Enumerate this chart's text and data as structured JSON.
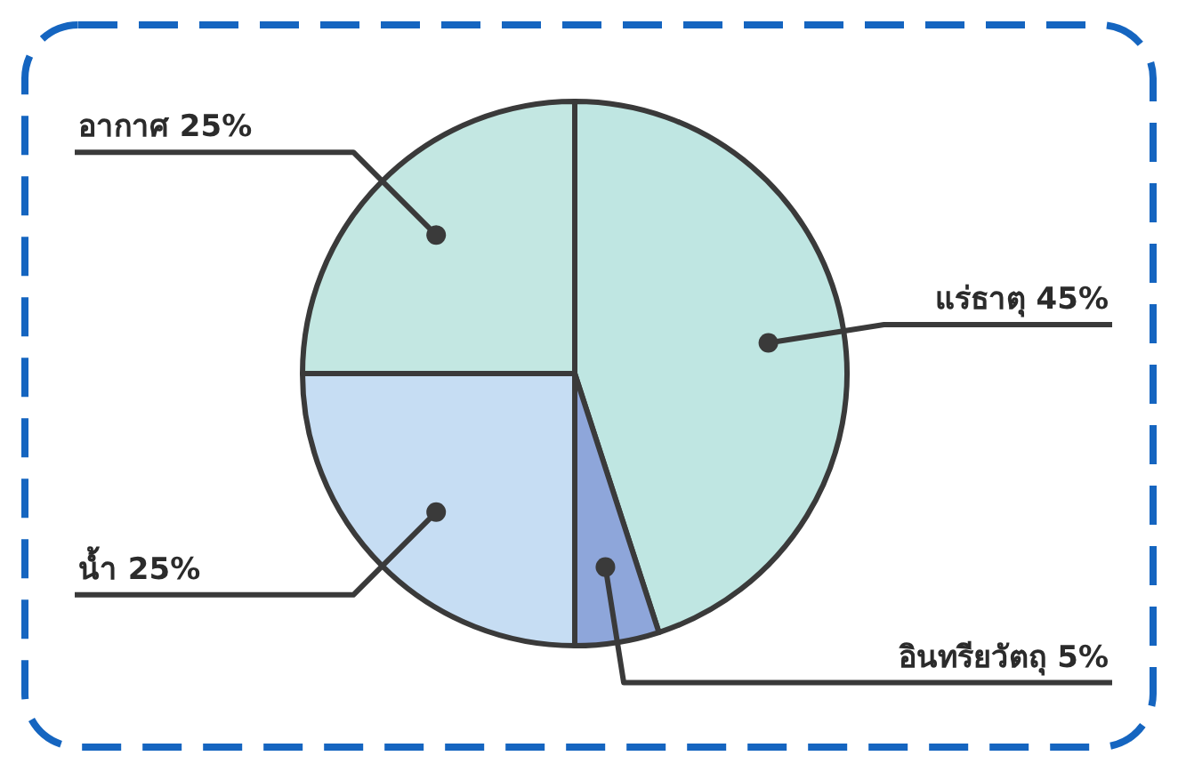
{
  "chart_data": {
    "type": "pie",
    "categories": [
      "แร่ธาตุ",
      "อินทรียวัตถุ",
      "น้ำ",
      "อากาศ"
    ],
    "values": [
      45,
      5,
      25,
      25
    ],
    "value_labels": [
      "45%",
      "5%",
      "25%",
      "25%"
    ],
    "colors": [
      "#bfe6e2",
      "#8ea6da",
      "#c6ddf3",
      "#c3e7e2"
    ]
  }
}
